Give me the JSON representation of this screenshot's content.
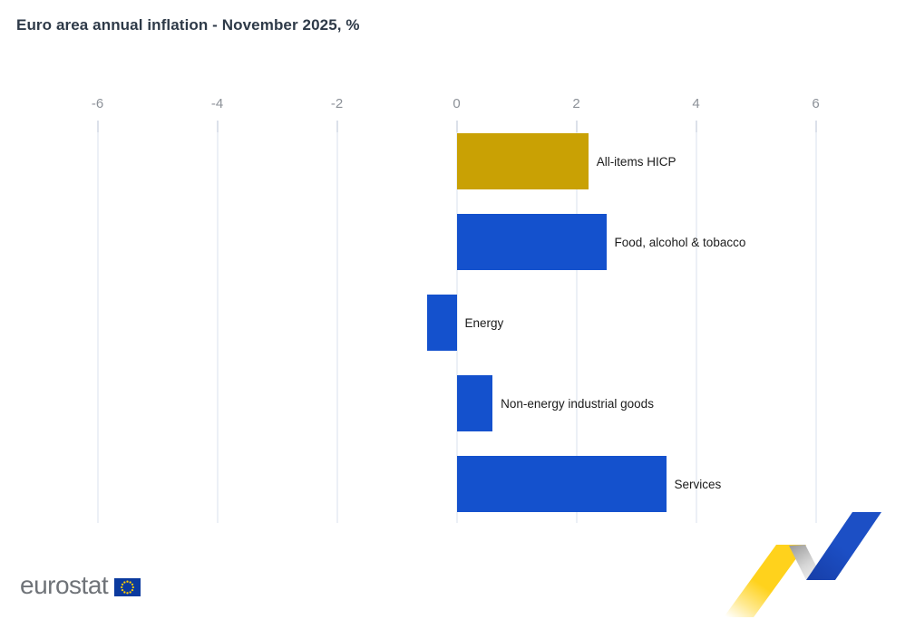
{
  "title": "Euro area annual inflation - November 2025, %",
  "chart_data": {
    "type": "bar",
    "orientation": "horizontal",
    "title": "Euro area annual inflation - November 2025, %",
    "unit": "%",
    "categories": [
      "All-items HICP",
      "Food, alcohol & tobacco",
      "Energy",
      "Non-energy industrial goods",
      "Services"
    ],
    "values": [
      2.2,
      2.5,
      -0.5,
      0.6,
      3.5
    ],
    "bar_colors": [
      "#C9A104",
      "#1451CD",
      "#1451CD",
      "#1451CD",
      "#1451CD"
    ],
    "x_ticks": [
      -6,
      -4,
      -2,
      0,
      2,
      4,
      6
    ],
    "x_tick_labels": [
      "-6",
      "-4",
      "-2",
      "0",
      "2",
      "4",
      "6"
    ],
    "xlim": [
      -6.2,
      7
    ],
    "grid": true,
    "legend": false,
    "value_labels": false
  },
  "colors": {
    "accent_gold": "#C9A104",
    "accent_blue": "#1451CD",
    "grid": "#ECF0F6",
    "tick": "#DCE1EA",
    "axis_text": "#8C9198",
    "label_text": "#1B1B1B",
    "title_text": "#2E3A48",
    "logo_gray": "#6F7378",
    "flag_blue": "#0B3A9E",
    "flag_stars": "#FFCC00",
    "motif_yellow": "#FFD21C",
    "motif_gray": "#B3B3B3",
    "motif_blue": "#1C4FC5"
  },
  "footer": {
    "logo_text": "eurostat"
  }
}
